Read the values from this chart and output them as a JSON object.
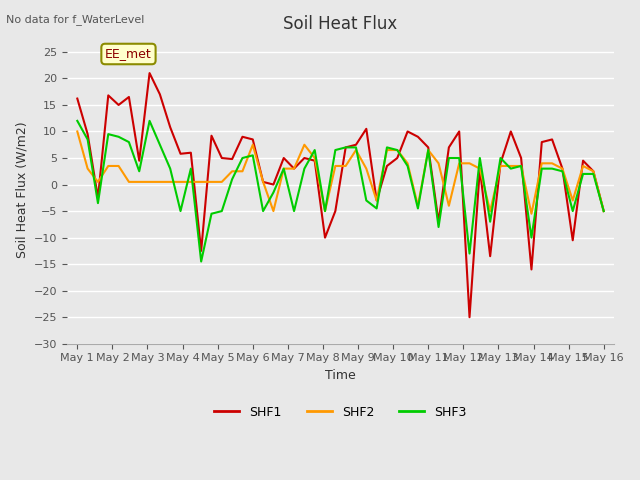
{
  "title": "Soil Heat Flux",
  "top_left_text": "No data for f_WaterLevel",
  "annotation_text": "EE_met",
  "xlabel": "Time",
  "ylabel": "Soil Heat Flux (W/m2)",
  "ylim": [
    -30,
    28
  ],
  "yticks": [
    -30,
    -25,
    -20,
    -15,
    -10,
    -5,
    0,
    5,
    10,
    15,
    20,
    25
  ],
  "background_color": "#e8e8e8",
  "plot_bg_color": "#e8e8e8",
  "grid_color": "#ffffff",
  "shf1_color": "#cc0000",
  "shf2_color": "#ff9900",
  "shf3_color": "#00cc00",
  "line_width": 1.5,
  "x_labels": [
    "May 1",
    "May 2",
    "May 3",
    "May 4",
    "May 5",
    "May 6",
    "May 7",
    "May 8",
    "May 9",
    "May 10",
    "May 11",
    "May 12",
    "May 13",
    "May 14",
    "May 15",
    "May 16"
  ],
  "shf1": [
    16.2,
    9.5,
    -2.5,
    16.8,
    15.0,
    16.5,
    4.5,
    21.0,
    17.0,
    10.8,
    5.8,
    6.0,
    -12.5,
    9.2,
    5.0,
    4.8,
    9.0,
    8.5,
    0.5,
    0.0,
    5.0,
    3.0,
    5.0,
    4.5,
    -10.0,
    -5.0,
    7.0,
    7.5,
    10.5,
    -3.0,
    3.5,
    5.0,
    10.0,
    9.0,
    7.0,
    -7.0,
    7.0,
    10.0,
    -25.0,
    3.0,
    -13.5,
    4.0,
    10.0,
    5.0,
    -16.0,
    8.0,
    8.5,
    3.0,
    -10.5,
    4.5,
    2.5,
    -5.0
  ],
  "shf2": [
    10.0,
    3.0,
    0.5,
    3.5,
    3.5,
    0.5,
    0.5,
    0.5,
    0.5,
    0.5,
    0.5,
    0.5,
    0.5,
    0.5,
    0.5,
    2.5,
    2.5,
    7.5,
    0.5,
    -5.0,
    3.0,
    3.0,
    7.5,
    5.0,
    -5.0,
    3.5,
    3.5,
    6.5,
    3.0,
    -3.0,
    6.5,
    6.5,
    4.0,
    -4.0,
    6.5,
    4.0,
    -4.0,
    4.0,
    4.0,
    3.0,
    -5.0,
    3.5,
    3.5,
    3.5,
    -5.5,
    4.0,
    4.0,
    3.0,
    -3.0,
    3.5,
    2.5,
    -5.0
  ],
  "shf3": [
    12.0,
    8.5,
    -3.5,
    9.5,
    9.0,
    8.0,
    2.5,
    12.0,
    7.5,
    3.0,
    -5.0,
    3.0,
    -14.5,
    -5.5,
    -5.0,
    1.0,
    5.0,
    5.5,
    -5.0,
    -1.5,
    3.0,
    -5.0,
    3.0,
    6.5,
    -5.0,
    6.5,
    7.0,
    7.0,
    -3.0,
    -4.5,
    7.0,
    6.5,
    3.5,
    -4.5,
    6.5,
    -8.0,
    5.0,
    5.0,
    -13.0,
    5.0,
    -7.0,
    5.0,
    3.0,
    3.5,
    -10.0,
    3.0,
    3.0,
    2.5,
    -5.0,
    2.0,
    2.0,
    -5.0
  ]
}
